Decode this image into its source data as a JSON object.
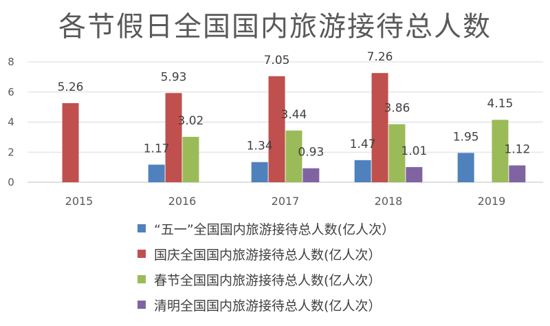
{
  "chart_data": {
    "type": "bar",
    "title": "各节假日全国国内旅游接待总人数",
    "categories": [
      "2015",
      "2016",
      "2017",
      "2018",
      "2019"
    ],
    "ylim": [
      0,
      8
    ],
    "yticks": [
      0,
      2,
      4,
      6,
      8
    ],
    "grid": true,
    "legend_position": "bottom",
    "series": [
      {
        "name": "“五一”全国国内旅游接待总人数(亿人次）",
        "color": "#4F81BD",
        "values": [
          null,
          1.17,
          1.34,
          1.47,
          1.95
        ],
        "labels": [
          "",
          "1.17",
          "1.34",
          "1.47",
          "1.95"
        ]
      },
      {
        "name": "国庆全国国内旅游接待总人数(亿人次）",
        "color": "#C0504D",
        "values": [
          5.26,
          5.93,
          7.05,
          7.26,
          null
        ],
        "labels": [
          "5.26",
          "5.93",
          "7.05",
          "7.26",
          ""
        ]
      },
      {
        "name": "春节全国国内旅游接待总人数(亿人次）",
        "color": "#9BBB59",
        "values": [
          null,
          3.02,
          3.44,
          3.86,
          4.15
        ],
        "labels": [
          "",
          "3.02",
          "3.44",
          "3.86",
          "4.15"
        ]
      },
      {
        "name": "清明全国国内旅游接待总人数(亿人次）",
        "color": "#8064A2",
        "values": [
          null,
          null,
          0.93,
          1.01,
          1.12
        ],
        "labels": [
          "",
          "",
          "0.93",
          "1.01",
          "1.12"
        ]
      }
    ]
  }
}
